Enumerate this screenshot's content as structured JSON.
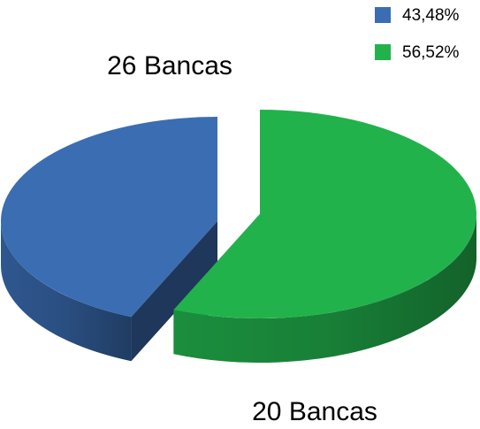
{
  "chart_data": {
    "type": "pie3d",
    "categories": [
      "43,48%",
      "56,52%"
    ],
    "values": [
      43.48,
      56.52
    ],
    "colors": [
      "#3b6db3",
      "#22b24c"
    ],
    "legend": "top-right",
    "annotations": [
      "26 Bancas",
      "20 Bancas"
    ]
  }
}
